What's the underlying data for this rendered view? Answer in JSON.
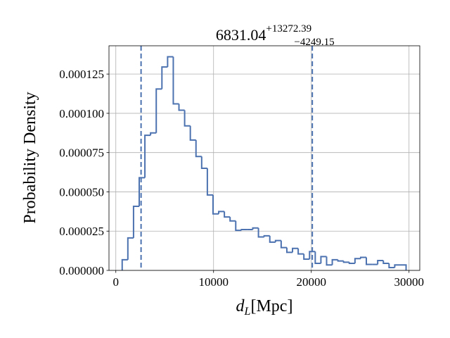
{
  "chart_data": {
    "type": "histogram",
    "title": {
      "value": "6831.04",
      "upper": "+13272.39",
      "lower": "−4249.15"
    },
    "xlabel": {
      "symbol": "d",
      "subscript": "L",
      "unit": "[Mpc]"
    },
    "ylabel": "Probability Density",
    "color": "#4c72b0",
    "grid": true,
    "histtype": "step",
    "bins": [
      650,
      1231,
      1812,
      2393,
      2974,
      3555,
      4136,
      4717,
      5298,
      5879,
      6460,
      7041,
      7622,
      8203,
      8784,
      9365,
      9946,
      10527,
      11108,
      11689,
      12270,
      12851,
      13432,
      14013,
      14594,
      15175,
      15756,
      16337,
      16918,
      17499,
      18080,
      18661,
      19242,
      19823,
      20404,
      20985,
      21566,
      22147,
      22728,
      23309,
      23890,
      24471,
      25052,
      25633,
      26214,
      26795,
      27376,
      27957,
      28538,
      29119,
      29700
    ],
    "counts": [
      6.8e-06,
      2.07e-05,
      4.08e-05,
      5.9e-05,
      8.6e-05,
      8.75e-05,
      0.0001155,
      0.0001295,
      0.000136,
      0.000106,
      0.000102,
      9.2e-05,
      8.3e-05,
      7.25e-05,
      6.5e-05,
      4.8e-05,
      3.6e-05,
      3.75e-05,
      3.4e-05,
      3.15e-05,
      2.55e-05,
      2.6e-05,
      2.6e-05,
      2.7e-05,
      2.13e-05,
      2.2e-05,
      1.8e-05,
      1.9e-05,
      1.45e-05,
      1.15e-05,
      1.4e-05,
      1.05e-05,
      7.2e-06,
      1.2e-05,
      4.5e-06,
      8.8e-06,
      3.5e-06,
      6.8e-06,
      6e-06,
      5.2e-06,
      4.5e-06,
      7.5e-06,
      8.3e-06,
      3.8e-06,
      3.8e-06,
      6.3e-06,
      4.5e-06,
      1.8e-06,
      3.5e-06,
      3.5e-06
    ],
    "vlines": [
      2581.89,
      20103.43
    ],
    "xlim": [
      -700,
      31100
    ],
    "ylim": [
      0,
      0.000143
    ],
    "xticks": [
      0,
      10000,
      20000,
      30000
    ],
    "yticks": [
      {
        "value": 0,
        "label": "0.000000"
      },
      {
        "value": 2.5e-05,
        "label": "0.000025"
      },
      {
        "value": 5e-05,
        "label": "0.000050"
      },
      {
        "value": 7.5e-05,
        "label": "0.000075"
      },
      {
        "value": 0.0001,
        "label": "0.000100"
      },
      {
        "value": 0.000125,
        "label": "0.000125"
      }
    ]
  }
}
